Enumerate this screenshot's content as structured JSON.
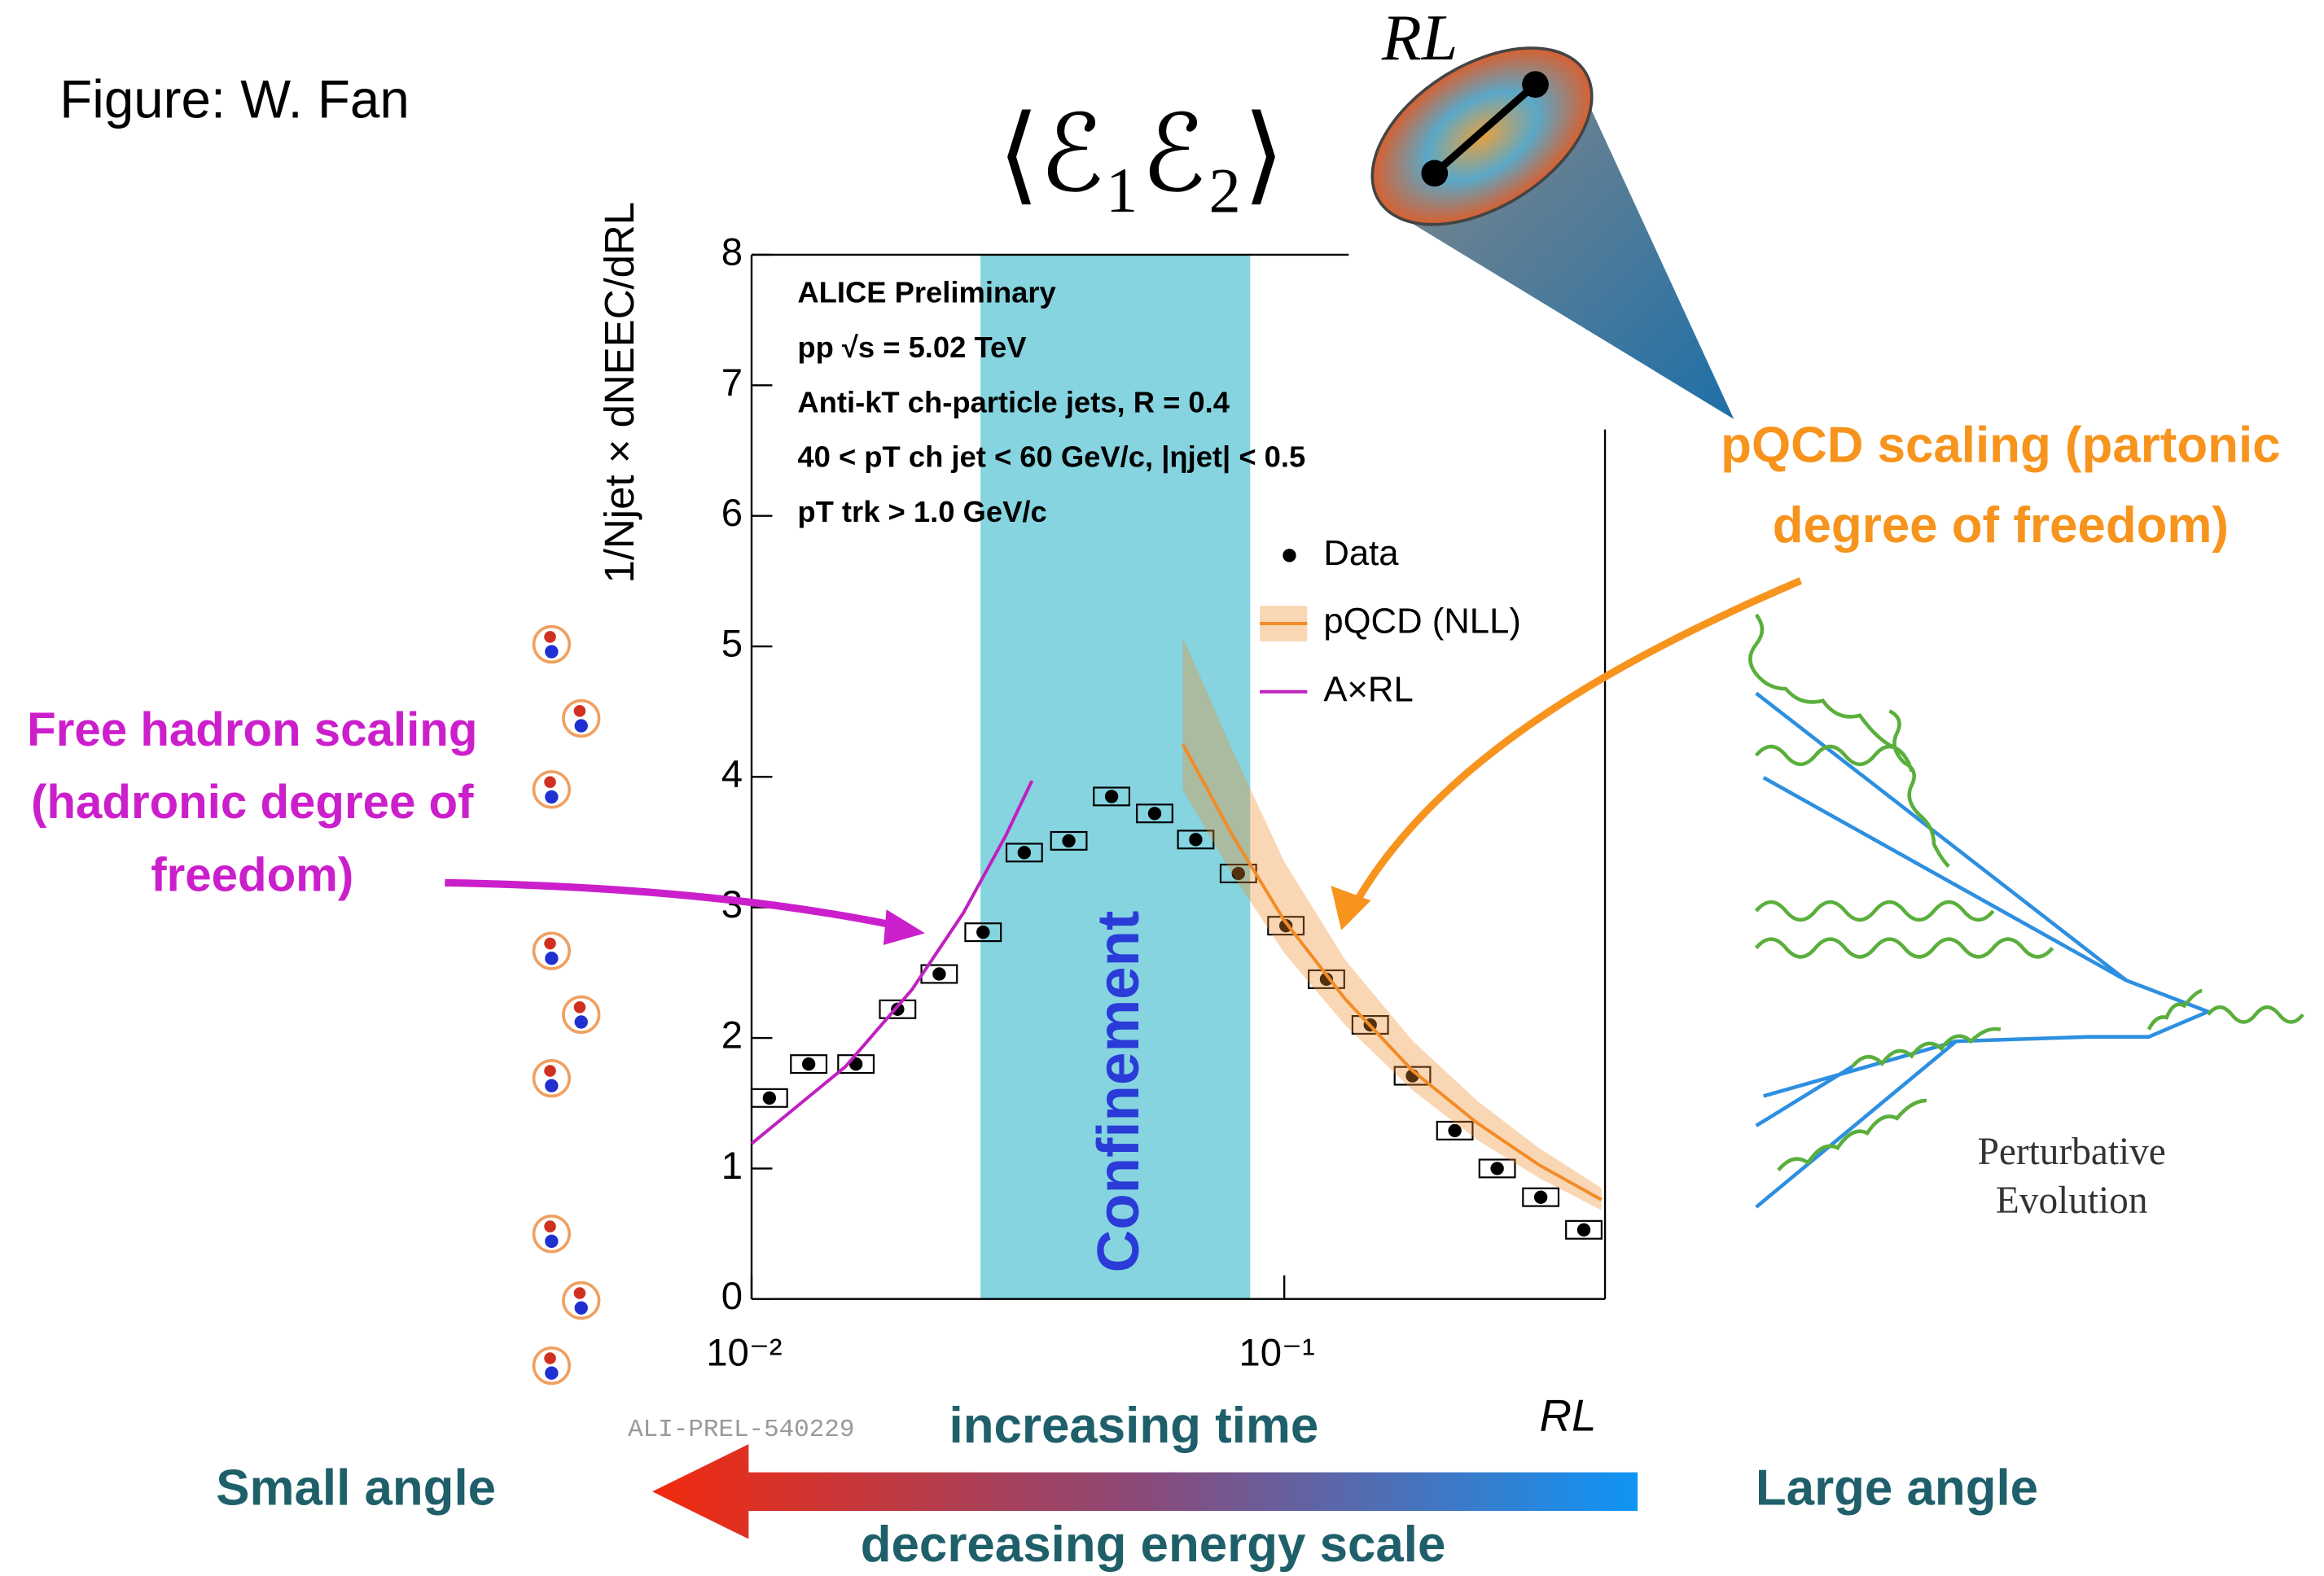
{
  "chart_data": {
    "type": "scatter",
    "title": "⟨ℰ₁ℰ₂⟩",
    "xlabel": "RL",
    "ylabel": "1/Njet × dNEEC/dRL",
    "info_lines": [
      "ALICE Preliminary",
      "pp  √s = 5.02 TeV",
      "Anti-kT ch-particle jets,  R = 0.4",
      "40 < pT ch jet < 60 GeV/c, |ηjet| < 0.5",
      "pT trk  > 1.0 GeV/c"
    ],
    "band_label": "Confinement",
    "band_x": [
      0.0269,
      0.0863
    ],
    "band_color": "#5cc6d6",
    "log_x": true,
    "xlim": [
      0.01,
      0.4
    ],
    "ylim": [
      0,
      8
    ],
    "xticks": [
      {
        "value": 0.01,
        "label": "10⁻²"
      },
      {
        "value": 0.1,
        "label": "10⁻¹"
      }
    ],
    "yticks": [
      0,
      1,
      2,
      3,
      4,
      5,
      6,
      7,
      8
    ],
    "series": [
      {
        "name": "Data",
        "color": "#000000",
        "x": [
          0.0108,
          0.0128,
          0.0157,
          0.0188,
          0.0225,
          0.0272,
          0.0325,
          0.0394,
          0.0474,
          0.0571,
          0.0682,
          0.082,
          0.1007,
          0.12,
          0.145,
          0.174,
          0.209,
          0.251,
          0.303,
          0.365
        ],
        "values": [
          1.54,
          1.8,
          1.8,
          2.22,
          2.49,
          2.81,
          3.42,
          3.51,
          3.85,
          3.72,
          3.52,
          3.26,
          2.86,
          2.45,
          2.1,
          1.71,
          1.29,
          1.0,
          0.78,
          0.53
        ]
      },
      {
        "name": "pQCD (NLL)",
        "color": "#f28c28",
        "x": [
          0.0645,
          0.08,
          0.1,
          0.13,
          0.174,
          0.23,
          0.3,
          0.394
        ],
        "values": [
          4.25,
          3.55,
          2.9,
          2.3,
          1.75,
          1.35,
          1.03,
          0.76
        ],
        "band_low": [
          3.9,
          3.25,
          2.65,
          2.1,
          1.6,
          1.22,
          0.93,
          0.68
        ],
        "band_high": [
          5.07,
          4.2,
          3.35,
          2.6,
          1.98,
          1.52,
          1.16,
          0.85
        ]
      },
      {
        "name": "A×RL",
        "color": "#c020c0",
        "x": [
          0.01,
          0.015,
          0.02,
          0.025,
          0.03,
          0.0336
        ],
        "values": [
          1.19,
          1.78,
          2.37,
          2.96,
          3.55,
          3.97
        ]
      }
    ]
  },
  "credit": "Figure: W. Fan",
  "cone_label": "RL",
  "pqcd_note": [
    "pQCD scaling (partonic",
    "degree of freedom)"
  ],
  "hadron_note": [
    "Free hadron scaling",
    "(hadronic degree of",
    "freedom)"
  ],
  "evolution_note": [
    "Perturbative",
    "Evolution"
  ],
  "plot_id": "ALI-PREL-540229",
  "arrow_top": "increasing time",
  "arrow_bottom": "decreasing energy scale",
  "left_end": "Small angle",
  "right_end": "Large angle"
}
